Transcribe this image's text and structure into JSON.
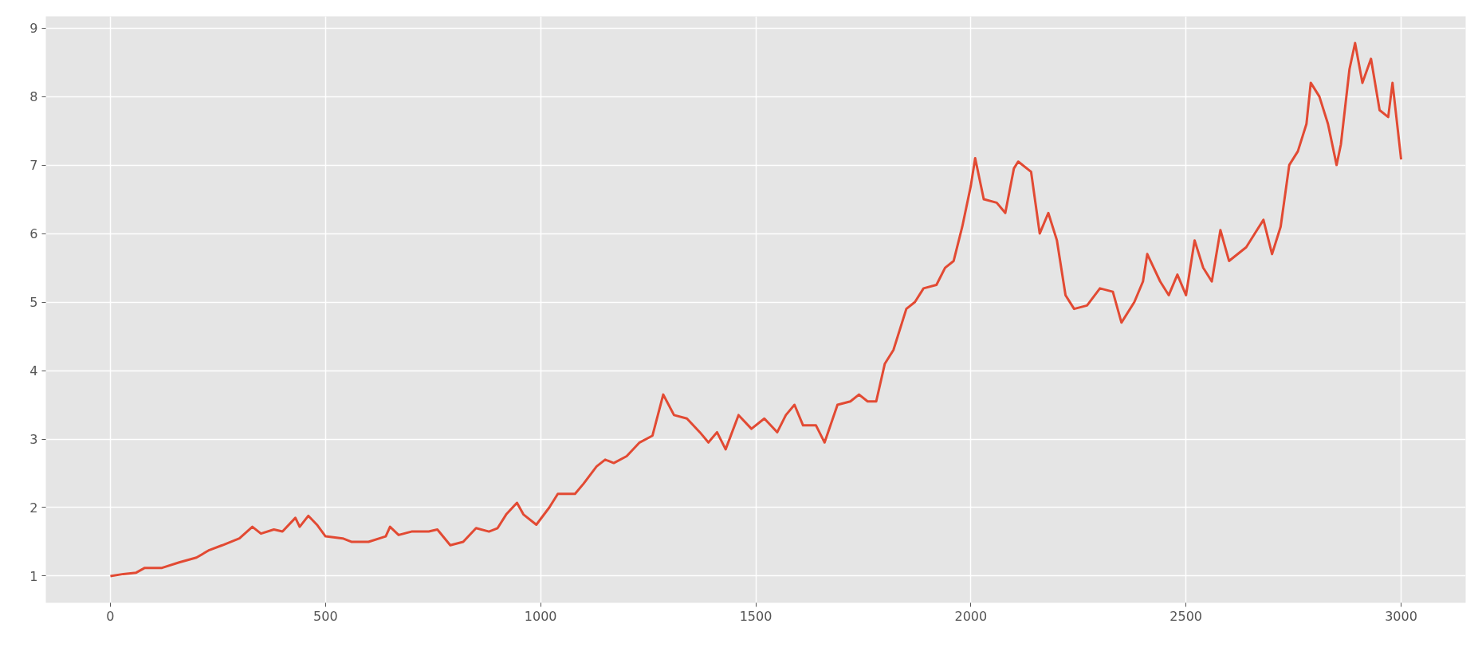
{
  "chart_data": {
    "type": "line",
    "x": [
      0,
      30,
      60,
      80,
      120,
      160,
      200,
      230,
      260,
      300,
      330,
      350,
      380,
      400,
      430,
      440,
      460,
      480,
      500,
      540,
      560,
      600,
      640,
      650,
      670,
      700,
      740,
      760,
      790,
      820,
      850,
      880,
      900,
      920,
      945,
      960,
      990,
      1020,
      1040,
      1080,
      1100,
      1130,
      1150,
      1170,
      1200,
      1230,
      1260,
      1285,
      1310,
      1340,
      1370,
      1390,
      1410,
      1430,
      1460,
      1490,
      1520,
      1550,
      1570,
      1590,
      1610,
      1640,
      1660,
      1690,
      1720,
      1740,
      1760,
      1780,
      1800,
      1820,
      1840,
      1850,
      1870,
      1890,
      1920,
      1940,
      1960,
      1980,
      2000,
      2010,
      2030,
      2060,
      2080,
      2100,
      2110,
      2140,
      2160,
      2180,
      2200,
      2220,
      2240,
      2270,
      2300,
      2330,
      2350,
      2380,
      2400,
      2410,
      2440,
      2460,
      2480,
      2500,
      2520,
      2540,
      2560,
      2580,
      2600,
      2640,
      2660,
      2680,
      2700,
      2720,
      2740,
      2760,
      2780,
      2790,
      2810,
      2830,
      2850,
      2860,
      2880,
      2893,
      2910,
      2930,
      2950,
      2970,
      2980,
      3000
    ],
    "series": [
      {
        "color": "#e24a33",
        "values": [
          1.0,
          1.03,
          1.05,
          1.12,
          1.12,
          1.2,
          1.27,
          1.38,
          1.45,
          1.55,
          1.72,
          1.62,
          1.68,
          1.65,
          1.85,
          1.72,
          1.88,
          1.75,
          1.58,
          1.55,
          1.5,
          1.5,
          1.58,
          1.72,
          1.6,
          1.65,
          1.65,
          1.68,
          1.45,
          1.5,
          1.7,
          1.65,
          1.7,
          1.9,
          2.07,
          1.9,
          1.75,
          2.0,
          2.2,
          2.2,
          2.35,
          2.6,
          2.7,
          2.65,
          2.75,
          2.95,
          3.05,
          3.65,
          3.35,
          3.3,
          3.1,
          2.95,
          3.1,
          2.85,
          3.35,
          3.15,
          3.3,
          3.1,
          3.35,
          3.5,
          3.2,
          3.2,
          2.95,
          3.5,
          3.55,
          3.65,
          3.55,
          3.55,
          4.1,
          4.3,
          4.7,
          4.9,
          5.0,
          5.2,
          5.25,
          5.5,
          5.6,
          6.1,
          6.7,
          7.1,
          6.5,
          6.45,
          6.3,
          6.95,
          7.05,
          6.9,
          6.0,
          6.3,
          5.9,
          5.1,
          4.9,
          4.95,
          5.2,
          5.15,
          4.7,
          5.0,
          5.3,
          5.7,
          5.3,
          5.1,
          5.4,
          5.1,
          5.9,
          5.5,
          5.3,
          6.05,
          5.6,
          5.8,
          6.0,
          6.2,
          5.7,
          6.1,
          7.0,
          7.2,
          7.6,
          8.2,
          8.0,
          7.6,
          7.0,
          7.3,
          8.4,
          8.78,
          8.2,
          8.55,
          7.8,
          7.7,
          8.2,
          7.08
        ]
      }
    ],
    "xlim": [
      -150,
      3150
    ],
    "ylim": [
      0.61,
      9.17
    ],
    "xticks": [
      0,
      500,
      1000,
      1500,
      2000,
      2500,
      3000
    ],
    "yticks": [
      1,
      2,
      3,
      4,
      5,
      6,
      7,
      8,
      9
    ],
    "grid": true,
    "marker": "none",
    "line_style": "solid"
  }
}
